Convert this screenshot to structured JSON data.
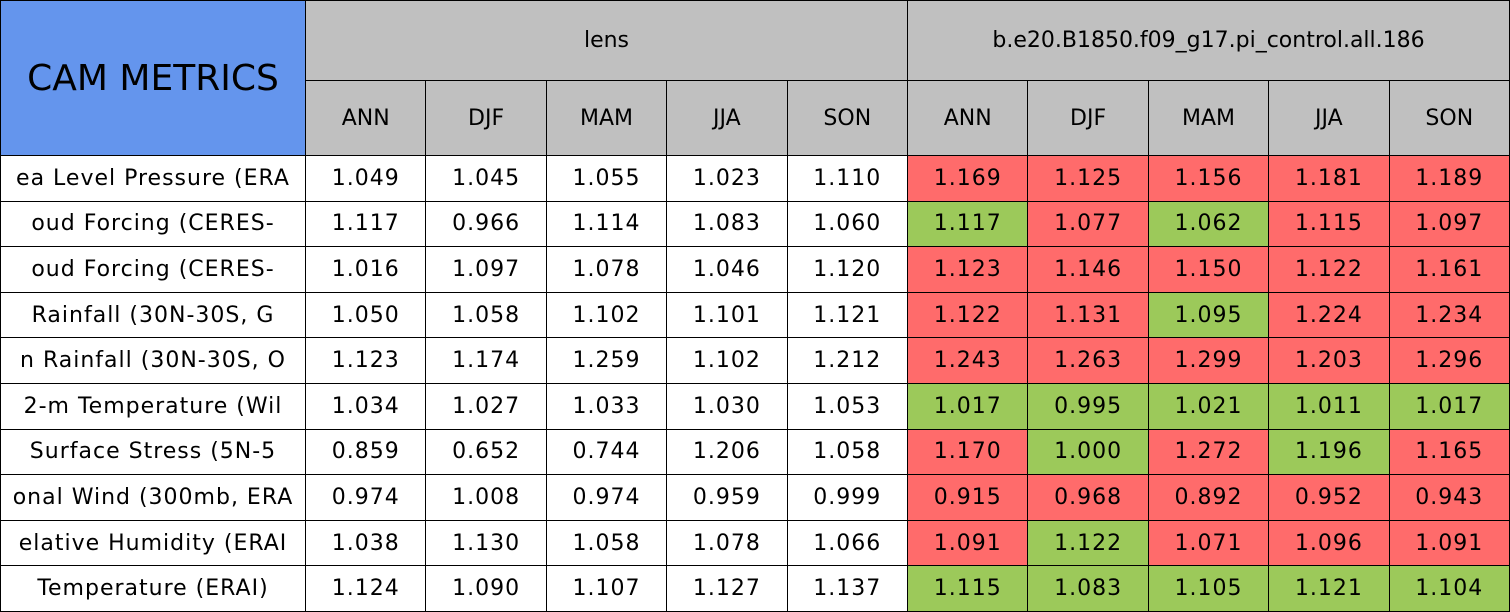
{
  "header": {
    "title": "CAM METRICS",
    "title_color": "#6495ed",
    "header_color": "#c0c0c0",
    "groups": [
      {
        "name": "lens",
        "seasons": [
          "ANN",
          "DJF",
          "MAM",
          "JJA",
          "SON"
        ]
      },
      {
        "name": "b.e20.B1850.f09_g17.pi_control.all.186",
        "seasons": [
          "ANN",
          "DJF",
          "MAM",
          "JJA",
          "SON"
        ]
      }
    ]
  },
  "table": {
    "rows": [
      {
        "label": "ea Level Pressure (ERA",
        "values": [
          "1.049",
          "1.045",
          "1.055",
          "1.023",
          "1.110",
          "1.169",
          "1.125",
          "1.156",
          "1.181",
          "1.189"
        ],
        "colors": [
          "#ff6b6b",
          "#ff6b6b",
          "#ff6b6b",
          "#ff6b6b",
          "#ff6b6b"
        ]
      },
      {
        "label": "oud Forcing (CERES-",
        "values": [
          "1.117",
          "0.966",
          "1.114",
          "1.083",
          "1.060",
          "1.117",
          "1.077",
          "1.062",
          "1.115",
          "1.097"
        ],
        "colors": [
          "#9cc95a",
          "#ff6b6b",
          "#9cc95a",
          "#ff6b6b",
          "#ff6b6b"
        ]
      },
      {
        "label": "oud Forcing (CERES-",
        "values": [
          "1.016",
          "1.097",
          "1.078",
          "1.046",
          "1.120",
          "1.123",
          "1.146",
          "1.150",
          "1.122",
          "1.161"
        ],
        "colors": [
          "#ff6b6b",
          "#ff6b6b",
          "#ff6b6b",
          "#ff6b6b",
          "#ff6b6b"
        ]
      },
      {
        "label": "Rainfall (30N-30S, G",
        "values": [
          "1.050",
          "1.058",
          "1.102",
          "1.101",
          "1.121",
          "1.122",
          "1.131",
          "1.095",
          "1.224",
          "1.234"
        ],
        "colors": [
          "#ff6b6b",
          "#ff6b6b",
          "#9cc95a",
          "#ff6b6b",
          "#ff6b6b"
        ]
      },
      {
        "label": "n Rainfall (30N-30S, O",
        "values": [
          "1.123",
          "1.174",
          "1.259",
          "1.102",
          "1.212",
          "1.243",
          "1.263",
          "1.299",
          "1.203",
          "1.296"
        ],
        "colors": [
          "#ff6b6b",
          "#ff6b6b",
          "#ff6b6b",
          "#ff6b6b",
          "#ff6b6b"
        ]
      },
      {
        "label": "2-m Temperature (Wil",
        "values": [
          "1.034",
          "1.027",
          "1.033",
          "1.030",
          "1.053",
          "1.017",
          "0.995",
          "1.021",
          "1.011",
          "1.017"
        ],
        "colors": [
          "#9cc95a",
          "#9cc95a",
          "#9cc95a",
          "#9cc95a",
          "#9cc95a"
        ]
      },
      {
        "label": "Surface Stress (5N-5",
        "values": [
          "0.859",
          "0.652",
          "0.744",
          "1.206",
          "1.058",
          "1.170",
          "1.000",
          "1.272",
          "1.196",
          "1.165"
        ],
        "colors": [
          "#ff6b6b",
          "#9cc95a",
          "#ff6b6b",
          "#9cc95a",
          "#ff6b6b"
        ]
      },
      {
        "label": "onal Wind (300mb, ERA",
        "values": [
          "0.974",
          "1.008",
          "0.974",
          "0.959",
          "0.999",
          "0.915",
          "0.968",
          "0.892",
          "0.952",
          "0.943"
        ],
        "colors": [
          "#ff6b6b",
          "#ff6b6b",
          "#ff6b6b",
          "#ff6b6b",
          "#ff6b6b"
        ]
      },
      {
        "label": "elative Humidity (ERAI",
        "values": [
          "1.038",
          "1.130",
          "1.058",
          "1.078",
          "1.066",
          "1.091",
          "1.122",
          "1.071",
          "1.096",
          "1.091"
        ],
        "colors": [
          "#ff6b6b",
          "#9cc95a",
          "#ff6b6b",
          "#ff6b6b",
          "#ff6b6b"
        ]
      },
      {
        "label": "Temperature (ERAI)",
        "values": [
          "1.124",
          "1.090",
          "1.107",
          "1.127",
          "1.137",
          "1.115",
          "1.083",
          "1.105",
          "1.121",
          "1.104"
        ],
        "colors": [
          "#9cc95a",
          "#9cc95a",
          "#9cc95a",
          "#9cc95a",
          "#9cc95a"
        ]
      }
    ]
  }
}
